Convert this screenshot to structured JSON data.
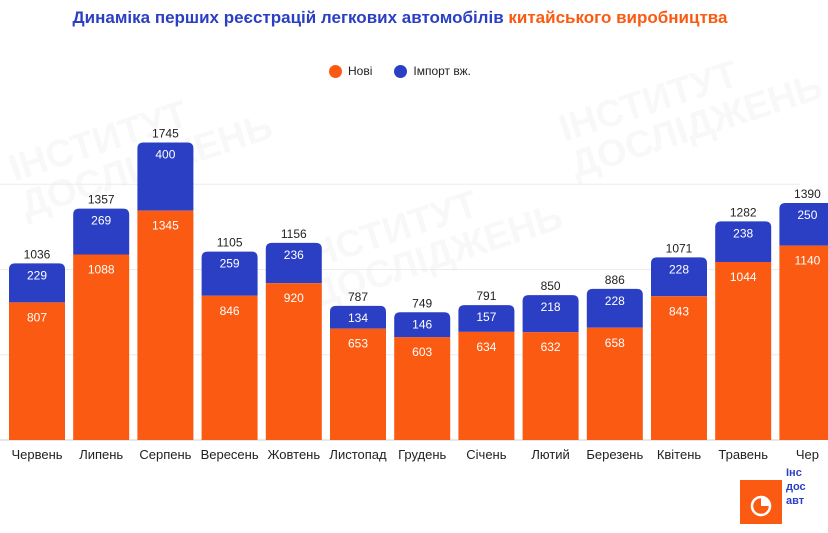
{
  "title": {
    "part1": "Динаміка перших реєстрацій легкових автомобілів ",
    "part2": "китайського виробництва"
  },
  "colors": {
    "title": "#2b3fc4",
    "accent": "#fb5a12",
    "new": "#fb5a12",
    "import": "#2b3fc4"
  },
  "logo": {
    "line1": "Інс",
    "line2": "дос",
    "line3": "авт"
  },
  "chart_data": {
    "type": "bar",
    "stacked": true,
    "title": "Динаміка перших реєстрацій легкових автомобілів китайського виробництва",
    "legend_position": "top-center",
    "grid": true,
    "ylim": [
      0,
      2000
    ],
    "categories": [
      "Червень",
      "Липень",
      "Серпень",
      "Вересень",
      "Жовтень",
      "Листопад",
      "Грудень",
      "Січень",
      "Лютий",
      "Березень",
      "Квітень",
      "Травень",
      "Чер"
    ],
    "series": [
      {
        "name": "Нові",
        "values": [
          807,
          1088,
          1345,
          846,
          920,
          653,
          603,
          634,
          632,
          658,
          843,
          1044,
          1140
        ]
      },
      {
        "name": "Імпорт вж.",
        "values": [
          229,
          269,
          400,
          259,
          236,
          134,
          146,
          157,
          218,
          228,
          228,
          238,
          250
        ]
      }
    ],
    "totals": [
      1036,
      1357,
      1745,
      1105,
      1156,
      787,
      749,
      791,
      850,
      886,
      1071,
      1282,
      1390
    ]
  }
}
